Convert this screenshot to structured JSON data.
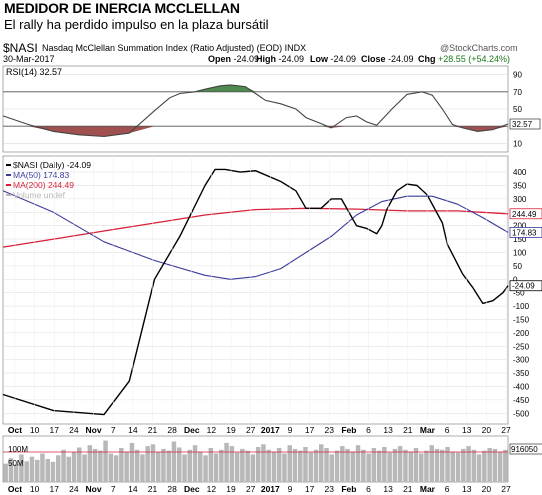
{
  "header": {
    "title": "MEDIDOR DE INERCIA MCCLELLAN",
    "subtitle": "El rally ha perdido impulso en la plaza bursátil"
  },
  "chart_header": {
    "symbol": "$NASI",
    "name": "Nasdaq McClellan Summation Index (Ratio Adjusted) (EOD)",
    "exchange": "INDX",
    "brand": "@StockCharts.com",
    "date": "30-Mar-2017",
    "open_label": "Open",
    "open": "-24.09",
    "high_label": "High",
    "high": "-24.09",
    "low_label": "Low",
    "low": "-24.09",
    "close_label": "Close",
    "close": "-24.09",
    "chg_label": "Chg",
    "chg": "+28.55 (+54.24%)"
  },
  "colors": {
    "nasi": "#000000",
    "ma50": "#3a3a9c",
    "ma200": "#d8203a",
    "rsi_line": "#444444",
    "rsi_over": "#4e8a4e",
    "rsi_under": "#a0504e",
    "volume": "#b8b8b8"
  },
  "chart_data": [
    {
      "type": "line",
      "title": "RSI(14) 32.57",
      "legend": "RSI(14) 32.57",
      "ylim": [
        0,
        100
      ],
      "yticks": [
        10,
        30,
        50,
        70,
        90
      ],
      "reference_lines": [
        30,
        70
      ],
      "last_value_label": "32.57",
      "x": [
        0,
        5,
        10,
        15,
        20,
        25,
        30,
        33,
        35,
        38,
        40,
        43,
        45,
        48,
        50,
        52,
        55,
        58,
        60,
        63,
        65,
        68,
        70,
        72,
        74,
        77,
        80,
        83,
        85,
        87,
        89,
        91,
        94,
        97,
        100
      ],
      "values": [
        42,
        32,
        24,
        20,
        18,
        22,
        48,
        63,
        68,
        70,
        73,
        77,
        78,
        76,
        68,
        60,
        56,
        50,
        40,
        33,
        28,
        40,
        42,
        35,
        31,
        50,
        67,
        70,
        66,
        50,
        32,
        28,
        24,
        26,
        32.57
      ]
    },
    {
      "type": "line",
      "title": "$NASI (Daily) -24.09",
      "ylim": [
        -540,
        460
      ],
      "yticks": [
        400,
        350,
        300,
        250,
        200,
        150,
        100,
        50,
        0,
        -50,
        -100,
        -150,
        -200,
        -250,
        -300,
        -350,
        -400,
        -450,
        -500
      ],
      "last_value_labels": [
        "244.49",
        "174.83",
        "-24.09"
      ],
      "series": [
        {
          "name": "$NASI (Daily) -24.09",
          "x": [
            0,
            10,
            20,
            25,
            30,
            35,
            40,
            42,
            44,
            47,
            50,
            55,
            58,
            60,
            63,
            65,
            67,
            70,
            72,
            74,
            75,
            76,
            78,
            80,
            82,
            84,
            87,
            88,
            91,
            93,
            95,
            97,
            99,
            100
          ],
          "values": [
            -430,
            -490,
            -505,
            -380,
            0,
            160,
            350,
            410,
            410,
            400,
            405,
            365,
            330,
            265,
            265,
            300,
            300,
            200,
            190,
            170,
            200,
            260,
            330,
            355,
            350,
            315,
            210,
            130,
            20,
            -30,
            -90,
            -80,
            -50,
            -24.09
          ]
        },
        {
          "name": "MA(50) 174.83",
          "x": [
            0,
            10,
            20,
            30,
            40,
            45,
            50,
            55,
            60,
            65,
            70,
            75,
            80,
            85,
            90,
            95,
            100
          ],
          "values": [
            330,
            250,
            140,
            70,
            15,
            0,
            10,
            40,
            100,
            160,
            240,
            290,
            310,
            310,
            280,
            230,
            174.83
          ]
        },
        {
          "name": "MA(200) 244.49",
          "x": [
            0,
            10,
            20,
            30,
            40,
            50,
            60,
            70,
            80,
            90,
            100
          ],
          "values": [
            120,
            150,
            180,
            210,
            240,
            260,
            265,
            262,
            255,
            255,
            244.49
          ]
        },
        {
          "name": "Volume undef",
          "x": [],
          "values": []
        }
      ]
    },
    {
      "type": "bar",
      "title": "Volume",
      "yticks": [
        "100M",
        "50M"
      ],
      "last_value_label": "916050",
      "values": [
        40,
        52,
        38,
        60,
        45,
        55,
        48,
        62,
        50,
        44,
        58,
        70,
        55,
        65,
        75,
        60,
        80,
        72,
        68,
        90,
        62,
        58,
        74,
        66,
        85,
        70,
        60,
        78,
        82,
        65,
        72,
        68,
        88,
        75,
        60,
        70,
        80,
        66,
        58,
        74,
        62,
        70,
        85,
        78,
        64,
        72,
        68,
        60,
        76,
        82,
        70,
        66,
        74,
        62,
        80,
        72,
        68,
        76,
        64,
        70,
        82,
        74,
        60,
        68,
        78,
        72,
        66,
        80,
        70,
        62,
        74,
        68,
        76,
        64,
        72,
        78,
        70,
        66,
        74,
        62,
        68,
        80,
        72,
        70,
        76,
        66,
        64,
        72,
        78,
        70,
        60,
        68,
        74,
        72,
        66,
        70
      ]
    }
  ],
  "x_axis": {
    "labels": [
      {
        "text": "Oct",
        "bold": true
      },
      {
        "text": "10",
        "bold": false
      },
      {
        "text": "17",
        "bold": false
      },
      {
        "text": "24",
        "bold": false
      },
      {
        "text": "Nov",
        "bold": true
      },
      {
        "text": "7",
        "bold": false
      },
      {
        "text": "14",
        "bold": false
      },
      {
        "text": "21",
        "bold": false
      },
      {
        "text": "28",
        "bold": false
      },
      {
        "text": "Dec",
        "bold": true
      },
      {
        "text": "12",
        "bold": false
      },
      {
        "text": "19",
        "bold": false
      },
      {
        "text": "27",
        "bold": false
      },
      {
        "text": "2017",
        "bold": true
      },
      {
        "text": "9",
        "bold": false
      },
      {
        "text": "17",
        "bold": false
      },
      {
        "text": "23",
        "bold": false
      },
      {
        "text": "Feb",
        "bold": true
      },
      {
        "text": "6",
        "bold": false
      },
      {
        "text": "13",
        "bold": false
      },
      {
        "text": "21",
        "bold": false
      },
      {
        "text": "Mar",
        "bold": true
      },
      {
        "text": "6",
        "bold": false
      },
      {
        "text": "13",
        "bold": false
      },
      {
        "text": "20",
        "bold": false
      },
      {
        "text": "27",
        "bold": false
      }
    ]
  }
}
